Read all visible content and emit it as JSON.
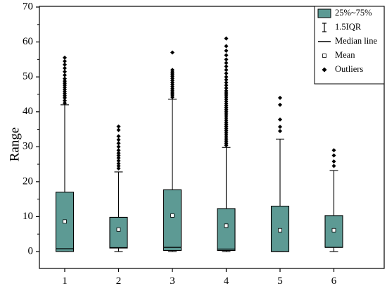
{
  "chart_data": {
    "type": "box",
    "ylabel": "Range",
    "xlabel": "",
    "title": "",
    "ylim": [
      0,
      70
    ],
    "yticks": [
      0,
      10,
      20,
      30,
      40,
      50,
      60,
      70
    ],
    "categories": [
      "1",
      "2",
      "3",
      "4",
      "5",
      "6"
    ],
    "box_color": "#5d9a94",
    "legend": {
      "placement": "top-right",
      "entries": [
        "25%~75%",
        "1.5IQR",
        "Median line",
        "Mean",
        "Outliers"
      ]
    },
    "boxes": [
      {
        "category": "1",
        "whisker_low": 0,
        "q1": 0,
        "median": 0.8,
        "q3": 17,
        "whisker_high": 42,
        "mean": 8.6,
        "outliers": [
          42.5,
          43.2,
          44,
          44.6,
          45.2,
          45.8,
          46.4,
          47,
          47.6,
          48.2,
          48.8,
          49.5,
          50.5,
          51.5,
          52.5,
          53.5,
          54.5,
          55.5
        ]
      },
      {
        "category": "2",
        "whisker_low": 0,
        "q1": 1,
        "median": 1.1,
        "q3": 9.8,
        "whisker_high": 22.8,
        "mean": 6.3,
        "outliers": [
          23.8,
          24.5,
          25.2,
          26,
          26.8,
          27.5,
          28.2,
          29,
          30,
          31,
          32,
          33,
          34.8,
          35.8
        ]
      },
      {
        "category": "3",
        "whisker_low": 0,
        "q1": 0.3,
        "median": 1.2,
        "q3": 17.7,
        "whisker_high": 43.6,
        "mean": 10.3,
        "outliers": [
          44.2,
          44.8,
          45.4,
          46,
          46.6,
          47.2,
          47.8,
          48.4,
          49,
          49.6,
          50.2,
          50.8,
          51.4,
          52,
          57
        ]
      },
      {
        "category": "4",
        "whisker_low": 0,
        "q1": 0.3,
        "median": 0.7,
        "q3": 12.3,
        "whisker_high": 29.8,
        "mean": 7.4,
        "outliers": [
          30.4,
          31,
          31.6,
          32.2,
          32.8,
          33.4,
          34,
          34.6,
          35.2,
          35.8,
          36.4,
          37,
          37.6,
          38.2,
          38.8,
          39.4,
          40,
          40.6,
          41.2,
          41.8,
          42.4,
          43,
          43.6,
          44.2,
          44.8,
          45.4,
          46,
          46.8,
          47.6,
          48.4,
          49.2,
          50,
          51,
          52,
          53,
          54,
          55,
          56.2,
          57.5,
          58.8,
          61
        ]
      },
      {
        "category": "5",
        "whisker_low": 0,
        "q1": 0,
        "median": 0,
        "q3": 13,
        "whisker_high": 32.2,
        "mean": 6.1,
        "outliers": [
          34.5,
          35.7,
          37.8,
          42,
          44
        ]
      },
      {
        "category": "6",
        "whisker_low": 0,
        "q1": 1.2,
        "median": 1.2,
        "q3": 10.3,
        "whisker_high": 23.2,
        "mean": 6.1,
        "outliers": [
          24.5,
          25.8,
          27.5,
          29
        ]
      }
    ]
  }
}
